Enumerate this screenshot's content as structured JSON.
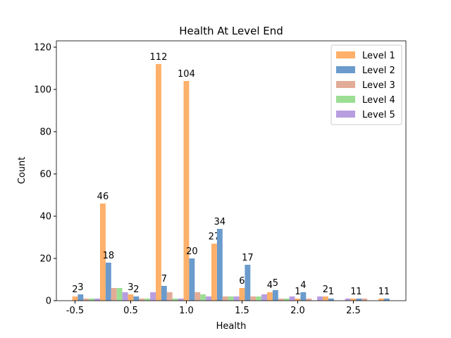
{
  "chart_data": {
    "type": "bar",
    "title": "Health At Level End",
    "xlabel": "Health",
    "ylabel": "Count",
    "categories": [
      null,
      null,
      null,
      null,
      null,
      null,
      null,
      null,
      null,
      null,
      null,
      null
    ],
    "xtick_labels": [
      "-0.5",
      "0.5",
      "1.0",
      "1.5",
      "2.0",
      "2.5"
    ],
    "ylim": [
      0,
      123
    ],
    "yticks": [
      0,
      20,
      40,
      60,
      80,
      100,
      120
    ],
    "legend": "upper right",
    "series": [
      {
        "name": "Level 1",
        "color": "#ffb06a",
        "show_labels": true,
        "values": [
          2,
          46,
          3,
          112,
          104,
          27,
          6,
          4,
          1,
          2,
          1,
          1
        ]
      },
      {
        "name": "Level 2",
        "color": "#6a9bcc",
        "show_labels": true,
        "values": [
          3,
          18,
          2,
          7,
          20,
          34,
          17,
          5,
          4,
          1,
          1,
          1
        ]
      },
      {
        "name": "Level 3",
        "color": "#e2ac97",
        "show_labels": false,
        "values": [
          1,
          6,
          1,
          4,
          4,
          2,
          2,
          1,
          1,
          0,
          1,
          0
        ]
      },
      {
        "name": "Level 4",
        "color": "#9cde94",
        "show_labels": false,
        "values": [
          1,
          6,
          1,
          1,
          3,
          2,
          2,
          1,
          0,
          0,
          0,
          0
        ]
      },
      {
        "name": "Level 5",
        "color": "#b89ee0",
        "show_labels": false,
        "values": [
          1,
          4,
          4,
          1,
          2,
          2,
          3,
          2,
          2,
          1,
          0,
          0
        ]
      }
    ]
  }
}
